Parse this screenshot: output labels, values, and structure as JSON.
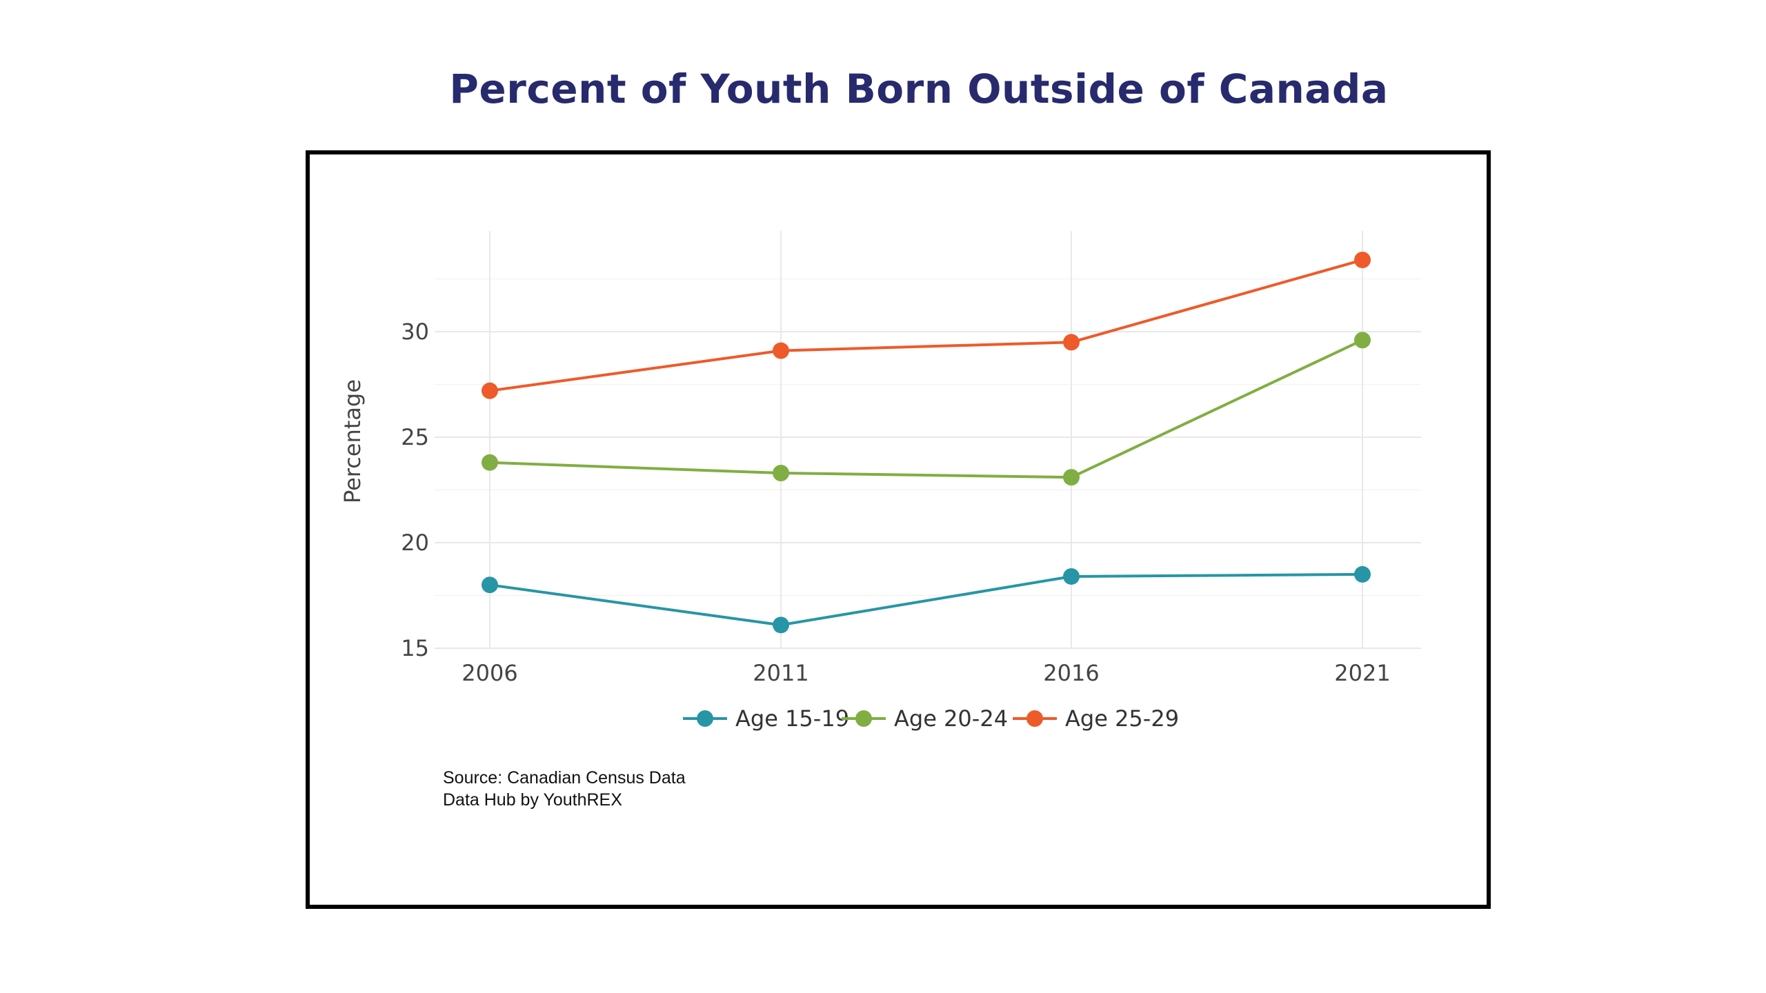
{
  "title": "Percent of Youth Born Outside of Canada",
  "source_lines": [
    "Source: Canadian Census Data",
    "Data Hub by YouthREX"
  ],
  "chart_data": {
    "type": "line",
    "title": "Percent of Youth Born Outside of Canada",
    "xlabel": "",
    "ylabel": "Percentage",
    "categories": [
      "2006",
      "2011",
      "2016",
      "2021"
    ],
    "yticks": [
      15,
      20,
      25,
      30
    ],
    "ylim": [
      15,
      34.5
    ],
    "grid": true,
    "legend_position": "bottom",
    "series": [
      {
        "name": "Age 15-19",
        "color": "#2795a6",
        "values": [
          18.0,
          16.1,
          18.4,
          18.5
        ]
      },
      {
        "name": "Age 20-24",
        "color": "#80ae42",
        "values": [
          23.8,
          23.3,
          23.1,
          29.6
        ]
      },
      {
        "name": "Age 25-29",
        "color": "#ee5a2a",
        "values": [
          27.2,
          29.1,
          29.5,
          33.4
        ]
      }
    ]
  }
}
